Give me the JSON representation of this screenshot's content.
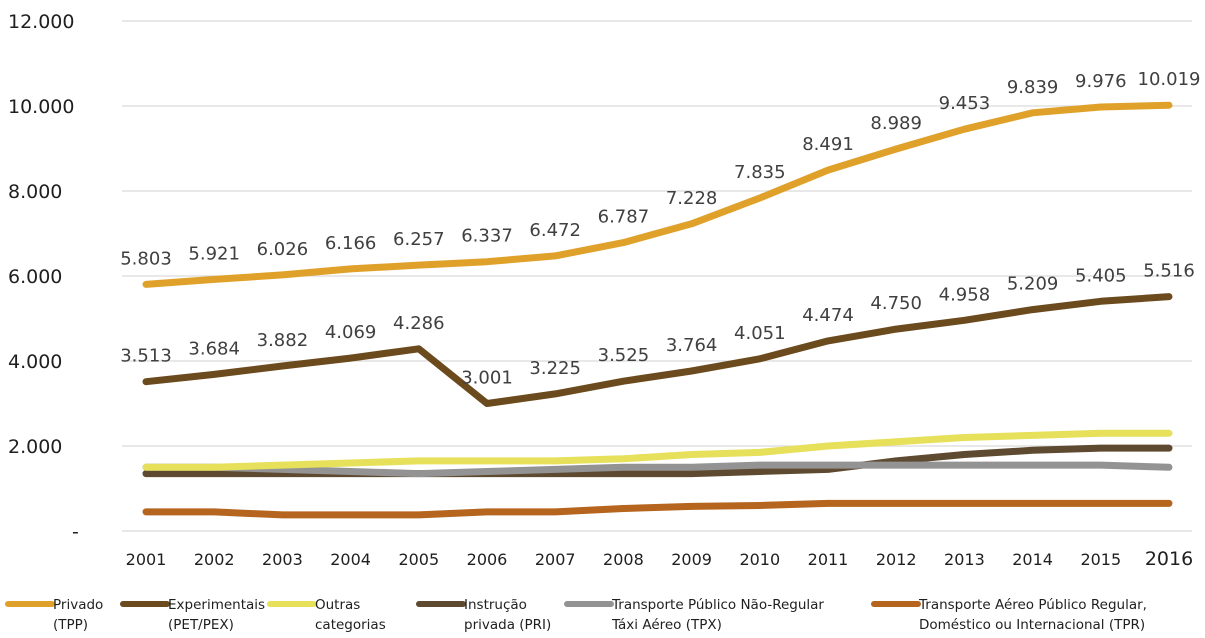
{
  "chart_data": {
    "type": "line",
    "categories": [
      "2001",
      "2002",
      "2003",
      "2004",
      "2005",
      "2006",
      "2007",
      "2008",
      "2009",
      "2010",
      "2011",
      "2012",
      "2013",
      "2014",
      "2015",
      "2016"
    ],
    "y_ticks": [
      "12.000",
      "10.000",
      "8.000",
      "6.000",
      "4.000",
      "2.000",
      "-"
    ],
    "ylim": [
      0,
      12000
    ],
    "grid": true,
    "legend_position": "bottom",
    "series": [
      {
        "name": "Privado (TPP)",
        "color": "#E0A12B",
        "values": [
          5803,
          5921,
          6026,
          6166,
          6257,
          6337,
          6472,
          6787,
          7228,
          7835,
          8491,
          8989,
          9453,
          9839,
          9976,
          10019
        ],
        "data_labels": [
          "5.803",
          "5.921",
          "6.026",
          "6.166",
          "6.257",
          "6.337",
          "6.472",
          "6.787",
          "7.228",
          "7.835",
          "8.491",
          "8.989",
          "9.453",
          "9.839",
          "9.976",
          "10.019"
        ]
      },
      {
        "name": "Experimentais (PET/PEX)",
        "color": "#6B4A1E",
        "values": [
          3513,
          3684,
          3882,
          4069,
          4286,
          3001,
          3225,
          3525,
          3764,
          4051,
          4474,
          4750,
          4958,
          5209,
          5405,
          5516
        ],
        "data_labels": [
          "3.513",
          "3.684",
          "3.882",
          "4.069",
          "4.286",
          "3.001",
          "3.225",
          "3.525",
          "3.764",
          "4.051",
          "4.474",
          "4.750",
          "4.958",
          "5.209",
          "5.405",
          "5.516"
        ]
      },
      {
        "name": "Outras categorias",
        "color": "#E6E05A",
        "values": [
          1500,
          1500,
          1550,
          1600,
          1650,
          1650,
          1650,
          1700,
          1800,
          1850,
          2000,
          2100,
          2200,
          2250,
          2300,
          2300
        ]
      },
      {
        "name": "Instrução privada (PRI)",
        "color": "#5E4A30",
        "values": [
          1350,
          1350,
          1350,
          1350,
          1350,
          1350,
          1350,
          1350,
          1350,
          1400,
          1450,
          1650,
          1800,
          1900,
          1950,
          1950
        ]
      },
      {
        "name": "Transporte Público Não-Regular Táxi Aéreo (TPX)",
        "color": "#939393",
        "values": [
          1500,
          1500,
          1450,
          1400,
          1350,
          1400,
          1450,
          1500,
          1500,
          1550,
          1550,
          1550,
          1550,
          1550,
          1550,
          1500
        ]
      },
      {
        "name": "Transporte Aéreo Público Regular, Doméstico ou Internacional (TPR)",
        "color": "#B5651D",
        "values": [
          450,
          450,
          380,
          380,
          380,
          450,
          450,
          530,
          580,
          600,
          650,
          650,
          650,
          650,
          650,
          650
        ]
      }
    ],
    "legend": [
      {
        "line1": "Privado",
        "line2": "(TPP)",
        "color": "#E0A12B"
      },
      {
        "line1": "Experimentais",
        "line2": "(PET/PEX)",
        "color": "#6B4A1E"
      },
      {
        "line1": "Outras",
        "line2": "categorias",
        "color": "#E6E05A"
      },
      {
        "line1": "Instrução",
        "line2": "privada (PRI)",
        "color": "#5E4A30"
      },
      {
        "line1": "Transporte Público Não-Regular",
        "line2": "Táxi Aéreo  (TPX)",
        "color": "#939393"
      },
      {
        "line1": "Transporte Aéreo Público Regular,",
        "line2": "Doméstico ou Internacional (TPR)",
        "color": "#B5651D"
      }
    ]
  }
}
